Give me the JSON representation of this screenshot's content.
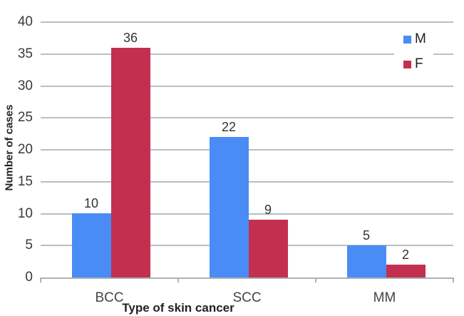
{
  "chart_data": {
    "type": "bar",
    "title": "",
    "xlabel": "Type of skin cancer",
    "ylabel": "Number of cases",
    "categories": [
      "BCC",
      "SCC",
      "MM"
    ],
    "series": [
      {
        "name": "M",
        "color": "#4a8cf5",
        "values": [
          10,
          22,
          5
        ]
      },
      {
        "name": "F",
        "color": "#c3304f",
        "values": [
          36,
          9,
          2
        ]
      }
    ],
    "ylim": [
      0,
      40
    ],
    "ytick_step": 5,
    "ytick_labels": [
      "0",
      "5",
      "10",
      "15",
      "20",
      "25",
      "30",
      "35",
      "40"
    ],
    "data_labels": {
      "BCC": {
        "M": "10",
        "F": "36"
      },
      "SCC": {
        "M": "22",
        "F": "9"
      },
      "MM": {
        "M": "5",
        "F": "2"
      }
    },
    "grid": true,
    "legend_position": "top-right",
    "colors": {
      "gridline": "#b7c0c2",
      "axis": "#a9b3b5",
      "tick_text": "#3a3a3a"
    }
  }
}
